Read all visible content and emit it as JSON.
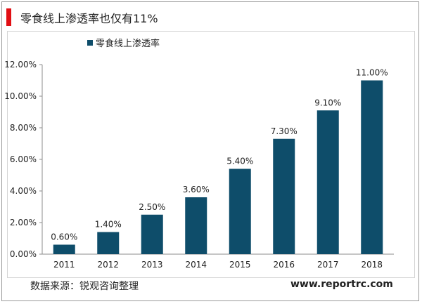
{
  "header": {
    "title": "零食线上渗透率也仅有11%",
    "accent_color": "#e10f14"
  },
  "footer": {
    "source": "数据来源：锐观咨询整理",
    "website": "www.reportrc.com"
  },
  "chart_data": {
    "type": "bar",
    "categories": [
      "2011",
      "2012",
      "2013",
      "2014",
      "2015",
      "2016",
      "2017",
      "2018"
    ],
    "series": [
      {
        "name": "零食线上渗透率",
        "values": [
          0.6,
          1.4,
          2.5,
          3.6,
          5.4,
          7.3,
          9.1,
          11.0
        ],
        "data_labels": [
          "0.60%",
          "1.40%",
          "2.50%",
          "3.60%",
          "5.40%",
          "7.30%",
          "9.10%",
          "11.00%"
        ],
        "color": "#0e4d6a"
      }
    ],
    "ylim": [
      0,
      12
    ],
    "yticks": [
      0,
      2,
      4,
      6,
      8,
      10,
      12
    ],
    "ytick_labels": [
      "0.00%",
      "2.00%",
      "4.00%",
      "6.00%",
      "8.00%",
      "10.00%",
      "12.00%"
    ],
    "grid": false,
    "legend_position": "top"
  }
}
